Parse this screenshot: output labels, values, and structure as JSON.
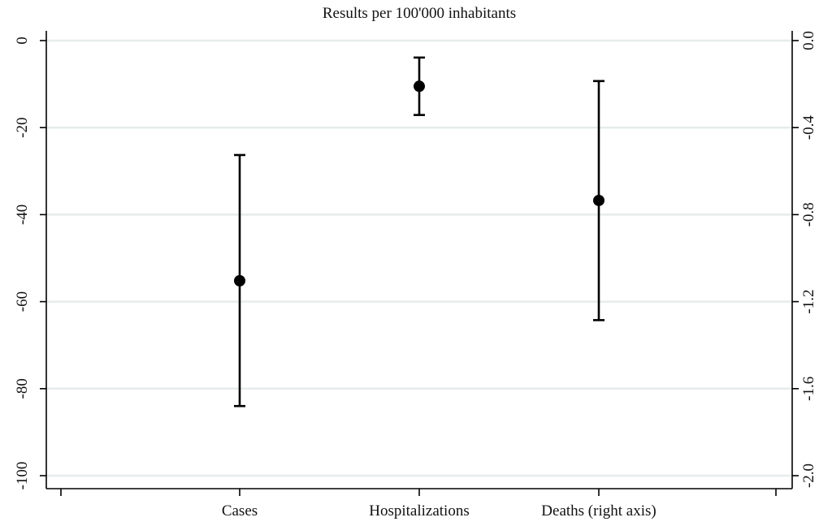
{
  "chart_data": {
    "type": "scatter",
    "title": "Results per 100'000 inhabitants",
    "categories": [
      "Cases",
      "Hospitalizations",
      "Deaths (right axis)"
    ],
    "left_axis": {
      "ylim": [
        -100,
        0
      ],
      "ticks": [
        0,
        -20,
        -40,
        -60,
        -80,
        -100
      ],
      "tick_labels": [
        "0",
        "-20",
        "-40",
        "-60",
        "-80",
        "-100"
      ]
    },
    "right_axis": {
      "ylim": [
        -2.0,
        0.0
      ],
      "ticks": [
        0.0,
        -0.4,
        -0.8,
        -1.2,
        -1.6,
        -2.0
      ],
      "tick_labels": [
        "0.0",
        "-0.4",
        "-0.8",
        "-1.2",
        "-1.6",
        "-2.0"
      ]
    },
    "series": [
      {
        "points": [
          {
            "category": "Cases",
            "axis": "left",
            "estimate": -55.2,
            "ci_low": -84.0,
            "ci_high": -26.3
          },
          {
            "category": "Hospitalizations",
            "axis": "left",
            "estimate": -10.5,
            "ci_low": -17.1,
            "ci_high": -3.9
          },
          {
            "category": "Deaths (right axis)",
            "axis": "right",
            "estimate": -0.735,
            "ci_low": -1.285,
            "ci_high": -0.186
          }
        ]
      }
    ],
    "grid": true,
    "legend": "none",
    "colors": {
      "marker": "#000000",
      "grid": "#e6ecec",
      "axis": "#000000"
    }
  }
}
